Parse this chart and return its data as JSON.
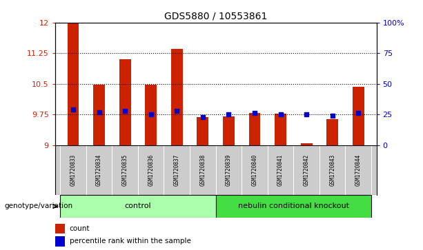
{
  "title": "GDS5880 / 10553861",
  "samples": [
    "GSM1720833",
    "GSM1720834",
    "GSM1720835",
    "GSM1720836",
    "GSM1720837",
    "GSM1720838",
    "GSM1720839",
    "GSM1720840",
    "GSM1720841",
    "GSM1720842",
    "GSM1720843",
    "GSM1720844"
  ],
  "counts": [
    12.0,
    10.47,
    11.1,
    10.47,
    11.35,
    9.68,
    9.7,
    9.78,
    9.76,
    9.05,
    9.63,
    10.42
  ],
  "percentiles": [
    29,
    27,
    28,
    25,
    28,
    23,
    25,
    26,
    25,
    25,
    24,
    26
  ],
  "bar_base": 9.0,
  "ylim_left": [
    9.0,
    12.0
  ],
  "ylim_right": [
    0,
    100
  ],
  "yticks_left": [
    9.0,
    9.75,
    10.5,
    11.25,
    12.0
  ],
  "yticks_right": [
    0,
    25,
    50,
    75,
    100
  ],
  "ytick_labels_left": [
    "9",
    "9.75",
    "10.5",
    "11.25",
    "12"
  ],
  "ytick_labels_right": [
    "0",
    "25",
    "50",
    "75",
    "100%"
  ],
  "hlines": [
    9.75,
    10.5,
    11.25
  ],
  "bar_color": "#cc2200",
  "dot_color": "#0000cc",
  "n_control": 6,
  "n_knockout": 6,
  "control_label": "control",
  "knockout_label": "nebulin conditional knockout",
  "genotype_label": "genotype/variation",
  "control_color": "#aaffaa",
  "knockout_color": "#44dd44",
  "tick_area_color": "#cccccc",
  "legend_count_label": "count",
  "legend_percentile_label": "percentile rank within the sample"
}
